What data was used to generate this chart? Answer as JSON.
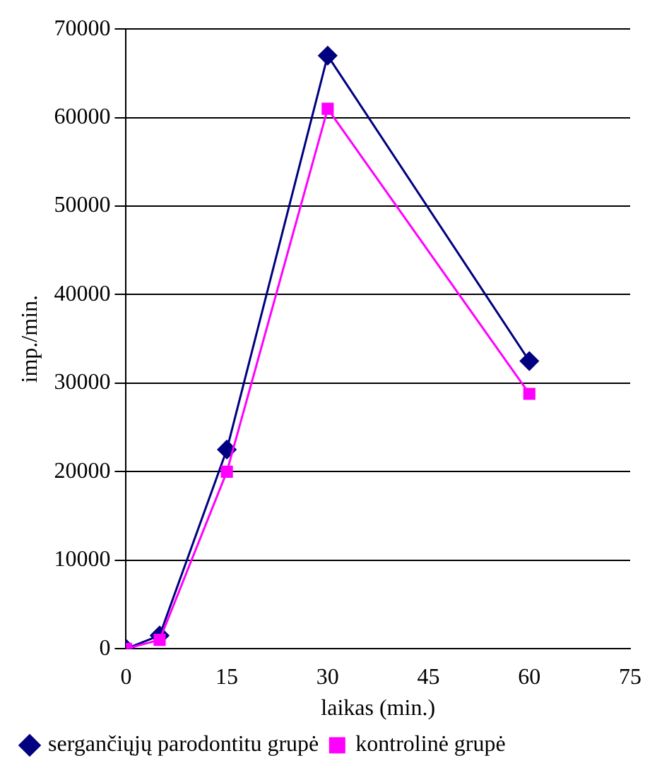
{
  "chart_data": {
    "type": "line",
    "xlabel": "laikas (min.)",
    "ylabel": "imp./min.",
    "xlim": [
      0,
      75
    ],
    "xticks": [
      0,
      15,
      30,
      45,
      60,
      75
    ],
    "ylim": [
      0,
      70000
    ],
    "yticks": [
      0,
      10000,
      20000,
      30000,
      40000,
      50000,
      60000,
      70000
    ],
    "grid": "y",
    "legend": "bottom",
    "line_style": "solid",
    "series": [
      {
        "name": "sergančiųjų parodontitu grupė",
        "color": "#000080",
        "marker": "diamond",
        "x": [
          0,
          5,
          15,
          30,
          60
        ],
        "values": [
          0,
          1500,
          22500,
          67000,
          32500
        ]
      },
      {
        "name": "kontrolinė grupė",
        "color": "#ff00ff",
        "marker": "square",
        "x": [
          0,
          5,
          15,
          30,
          60
        ],
        "values": [
          0,
          1000,
          20000,
          61000,
          28800
        ]
      }
    ]
  }
}
